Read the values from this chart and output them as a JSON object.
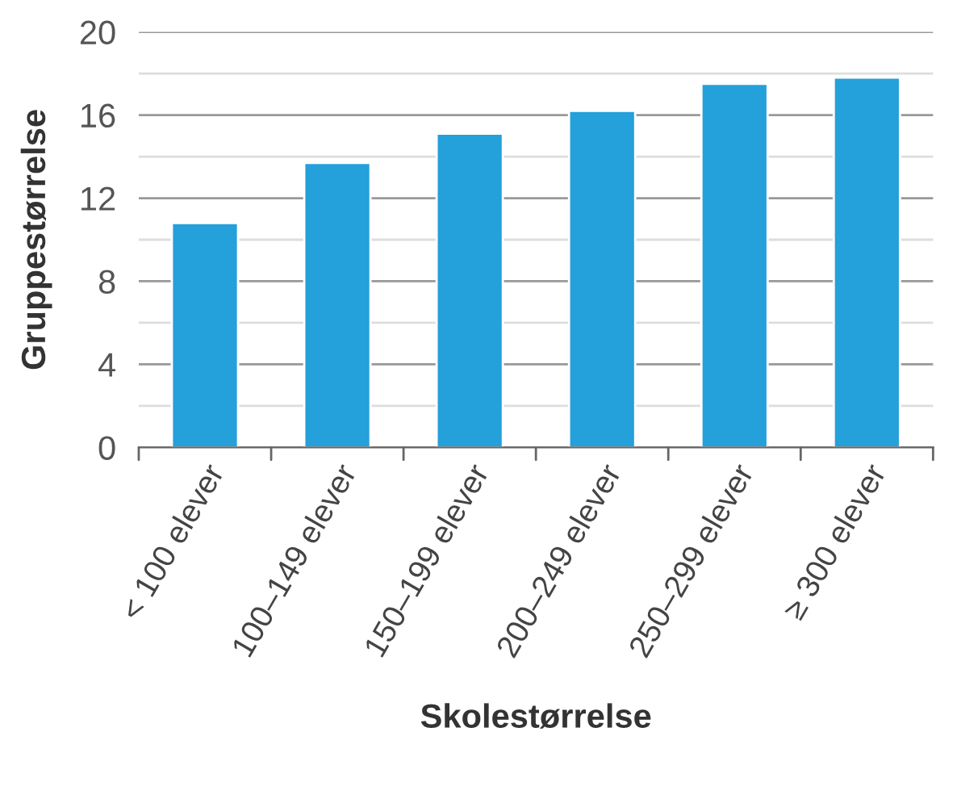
{
  "chart_data": {
    "type": "bar",
    "xlabel": "Skolestørrelse",
    "ylabel": "Gruppestørrelse",
    "categories": [
      "< 100 elever",
      "100–149 elever",
      "150–199 elever",
      "200–249 elever",
      "250–299 elever",
      "≥ 300 elever"
    ],
    "values": [
      10.8,
      13.7,
      15.1,
      16.2,
      17.5,
      17.8
    ],
    "color": "#24a0db",
    "ylim": [
      0,
      20
    ],
    "yticks": [
      0,
      {
        "value": 2,
        "label": null
      },
      4,
      {
        "value": 6,
        "label": null
      },
      8,
      {
        "value": 10,
        "label": null
      },
      12,
      {
        "value": 14,
        "label": null
      },
      16,
      {
        "value": 18,
        "label": null
      },
      20
    ],
    "grid": "y"
  }
}
